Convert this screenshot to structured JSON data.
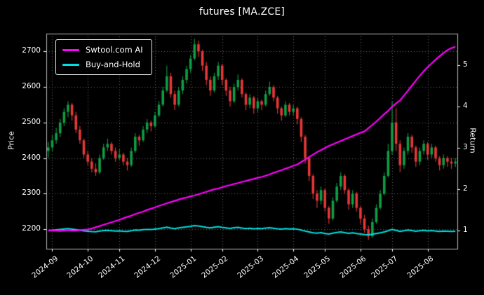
{
  "chart_data": {
    "type": "candlestick+line",
    "title": "futures [MA.ZCE]",
    "grid": "dotted",
    "legend_position": "upper-left",
    "price_axis": {
      "label": "Price",
      "range": [
        2145,
        2750
      ],
      "ticks": [
        2200,
        2300,
        2400,
        2500,
        2600,
        2700
      ]
    },
    "return_axis": {
      "label": "Return",
      "range": [
        0.56,
        5.77
      ],
      "ticks": [
        1,
        2,
        3,
        4,
        5
      ]
    },
    "x_ticks": [
      {
        "label": "2024-09",
        "i": 1
      },
      {
        "label": "2024-10",
        "i": 10
      },
      {
        "label": "2024-11",
        "i": 18
      },
      {
        "label": "2024-12",
        "i": 27
      },
      {
        "label": "2025-01",
        "i": 36
      },
      {
        "label": "2025-02",
        "i": 44
      },
      {
        "label": "2025-03",
        "i": 53
      },
      {
        "label": "2025-04",
        "i": 62
      },
      {
        "label": "2025-05",
        "i": 70
      },
      {
        "label": "2025-06",
        "i": 79
      },
      {
        "label": "2025-07",
        "i": 87
      },
      {
        "label": "2025-08",
        "i": 96
      }
    ],
    "candles_ohlc": [
      [
        2420,
        2445,
        2400,
        2430
      ],
      [
        2430,
        2465,
        2420,
        2450
      ],
      [
        2450,
        2485,
        2440,
        2470
      ],
      [
        2470,
        2510,
        2460,
        2500
      ],
      [
        2500,
        2540,
        2490,
        2530
      ],
      [
        2530,
        2560,
        2515,
        2550
      ],
      [
        2550,
        2555,
        2505,
        2520
      ],
      [
        2520,
        2530,
        2470,
        2480
      ],
      [
        2480,
        2490,
        2440,
        2450
      ],
      [
        2450,
        2455,
        2400,
        2410
      ],
      [
        2410,
        2420,
        2380,
        2390
      ],
      [
        2390,
        2400,
        2360,
        2370
      ],
      [
        2370,
        2385,
        2350,
        2360
      ],
      [
        2360,
        2410,
        2355,
        2400
      ],
      [
        2400,
        2440,
        2395,
        2430
      ],
      [
        2430,
        2455,
        2420,
        2440
      ],
      [
        2440,
        2445,
        2410,
        2420
      ],
      [
        2420,
        2430,
        2390,
        2400
      ],
      [
        2400,
        2425,
        2395,
        2410
      ],
      [
        2410,
        2415,
        2380,
        2390
      ],
      [
        2390,
        2400,
        2365,
        2380
      ],
      [
        2380,
        2430,
        2375,
        2420
      ],
      [
        2420,
        2470,
        2415,
        2460
      ],
      [
        2460,
        2465,
        2435,
        2450
      ],
      [
        2450,
        2490,
        2445,
        2480
      ],
      [
        2480,
        2510,
        2470,
        2500
      ],
      [
        2500,
        2505,
        2475,
        2490
      ],
      [
        2490,
        2530,
        2485,
        2520
      ],
      [
        2520,
        2560,
        2515,
        2550
      ],
      [
        2550,
        2600,
        2545,
        2590
      ],
      [
        2590,
        2660,
        2585,
        2630
      ],
      [
        2630,
        2640,
        2570,
        2580
      ],
      [
        2580,
        2590,
        2535,
        2550
      ],
      [
        2550,
        2600,
        2545,
        2590
      ],
      [
        2590,
        2630,
        2580,
        2620
      ],
      [
        2620,
        2660,
        2610,
        2650
      ],
      [
        2650,
        2690,
        2640,
        2680
      ],
      [
        2680,
        2735,
        2675,
        2720
      ],
      [
        2720,
        2730,
        2685,
        2700
      ],
      [
        2700,
        2705,
        2645,
        2660
      ],
      [
        2660,
        2670,
        2605,
        2620
      ],
      [
        2620,
        2630,
        2575,
        2590
      ],
      [
        2590,
        2640,
        2585,
        2630
      ],
      [
        2630,
        2670,
        2620,
        2660
      ],
      [
        2660,
        2665,
        2605,
        2620
      ],
      [
        2620,
        2625,
        2575,
        2590
      ],
      [
        2590,
        2600,
        2545,
        2560
      ],
      [
        2560,
        2610,
        2555,
        2600
      ],
      [
        2600,
        2635,
        2590,
        2620
      ],
      [
        2620,
        2625,
        2570,
        2580
      ],
      [
        2580,
        2585,
        2535,
        2550
      ],
      [
        2550,
        2580,
        2540,
        2570
      ],
      [
        2570,
        2575,
        2525,
        2540
      ],
      [
        2540,
        2570,
        2530,
        2560
      ],
      [
        2560,
        2565,
        2535,
        2550
      ],
      [
        2550,
        2590,
        2545,
        2580
      ],
      [
        2580,
        2615,
        2575,
        2600
      ],
      [
        2600,
        2605,
        2560,
        2570
      ],
      [
        2570,
        2575,
        2525,
        2540
      ],
      [
        2540,
        2545,
        2505,
        2520
      ],
      [
        2520,
        2560,
        2515,
        2550
      ],
      [
        2550,
        2555,
        2520,
        2530
      ],
      [
        2530,
        2550,
        2520,
        2540
      ],
      [
        2540,
        2545,
        2495,
        2510
      ],
      [
        2510,
        2515,
        2445,
        2460
      ],
      [
        2460,
        2465,
        2385,
        2400
      ],
      [
        2400,
        2405,
        2335,
        2350
      ],
      [
        2350,
        2355,
        2285,
        2300
      ],
      [
        2300,
        2310,
        2260,
        2280
      ],
      [
        2280,
        2320,
        2270,
        2310
      ],
      [
        2310,
        2315,
        2250,
        2260
      ],
      [
        2260,
        2265,
        2215,
        2230
      ],
      [
        2230,
        2290,
        2225,
        2280
      ],
      [
        2280,
        2330,
        2275,
        2320
      ],
      [
        2320,
        2360,
        2310,
        2350
      ],
      [
        2350,
        2355,
        2300,
        2310
      ],
      [
        2310,
        2315,
        2255,
        2270
      ],
      [
        2270,
        2310,
        2260,
        2300
      ],
      [
        2300,
        2305,
        2250,
        2260
      ],
      [
        2260,
        2265,
        2215,
        2230
      ],
      [
        2230,
        2240,
        2190,
        2200
      ],
      [
        2200,
        2210,
        2170,
        2180
      ],
      [
        2180,
        2230,
        2175,
        2220
      ],
      [
        2220,
        2270,
        2215,
        2260
      ],
      [
        2260,
        2310,
        2255,
        2300
      ],
      [
        2300,
        2360,
        2295,
        2350
      ],
      [
        2350,
        2440,
        2345,
        2420
      ],
      [
        2420,
        2560,
        2410,
        2500
      ],
      [
        2500,
        2540,
        2420,
        2440
      ],
      [
        2440,
        2450,
        2360,
        2380
      ],
      [
        2380,
        2430,
        2370,
        2420
      ],
      [
        2420,
        2470,
        2410,
        2460
      ],
      [
        2460,
        2465,
        2415,
        2430
      ],
      [
        2430,
        2435,
        2375,
        2390
      ],
      [
        2390,
        2430,
        2380,
        2420
      ],
      [
        2420,
        2450,
        2410,
        2440
      ],
      [
        2440,
        2445,
        2395,
        2410
      ],
      [
        2410,
        2440,
        2400,
        2430
      ],
      [
        2430,
        2435,
        2390,
        2400
      ],
      [
        2400,
        2405,
        2365,
        2380
      ],
      [
        2380,
        2410,
        2370,
        2400
      ],
      [
        2400,
        2405,
        2375,
        2390
      ],
      [
        2390,
        2400,
        2370,
        2385
      ],
      [
        2385,
        2400,
        2375,
        2390
      ]
    ],
    "series": [
      {
        "name": "Swtool.com AI",
        "axis": "return",
        "values": [
          1.0,
          1.0,
          1.0,
          0.99,
          1.0,
          1.01,
          1.0,
          1.0,
          1.01,
          1.02,
          1.03,
          1.05,
          1.08,
          1.11,
          1.14,
          1.17,
          1.2,
          1.23,
          1.26,
          1.3,
          1.33,
          1.36,
          1.4,
          1.43,
          1.46,
          1.5,
          1.53,
          1.56,
          1.6,
          1.63,
          1.66,
          1.69,
          1.72,
          1.75,
          1.78,
          1.8,
          1.83,
          1.85,
          1.88,
          1.91,
          1.94,
          1.97,
          2.0,
          2.02,
          2.05,
          2.08,
          2.1,
          2.13,
          2.15,
          2.18,
          2.2,
          2.23,
          2.25,
          2.28,
          2.3,
          2.33,
          2.36,
          2.4,
          2.43,
          2.46,
          2.5,
          2.53,
          2.57,
          2.6,
          2.66,
          2.72,
          2.78,
          2.84,
          2.9,
          2.95,
          3.0,
          3.05,
          3.09,
          3.13,
          3.17,
          3.21,
          3.25,
          3.29,
          3.33,
          3.37,
          3.4,
          3.48,
          3.56,
          3.64,
          3.73,
          3.82,
          3.9,
          4.0,
          4.08,
          4.15,
          4.27,
          4.39,
          4.51,
          4.63,
          4.75,
          4.86,
          4.96,
          5.05,
          5.14,
          5.22,
          5.3,
          5.37,
          5.42,
          5.45
        ]
      },
      {
        "name": "Buy-and-Hold",
        "axis": "return",
        "derived_from": "candle close divided by first close"
      }
    ],
    "colors": {
      "background": "#000000",
      "text": "#ffffff",
      "grid": "#676767",
      "spine": "#b9b9b9",
      "up": "#0f9d45",
      "down": "#e63737",
      "ai_line": "#ff00ff",
      "buyhold_line": "#00e0e0"
    }
  }
}
